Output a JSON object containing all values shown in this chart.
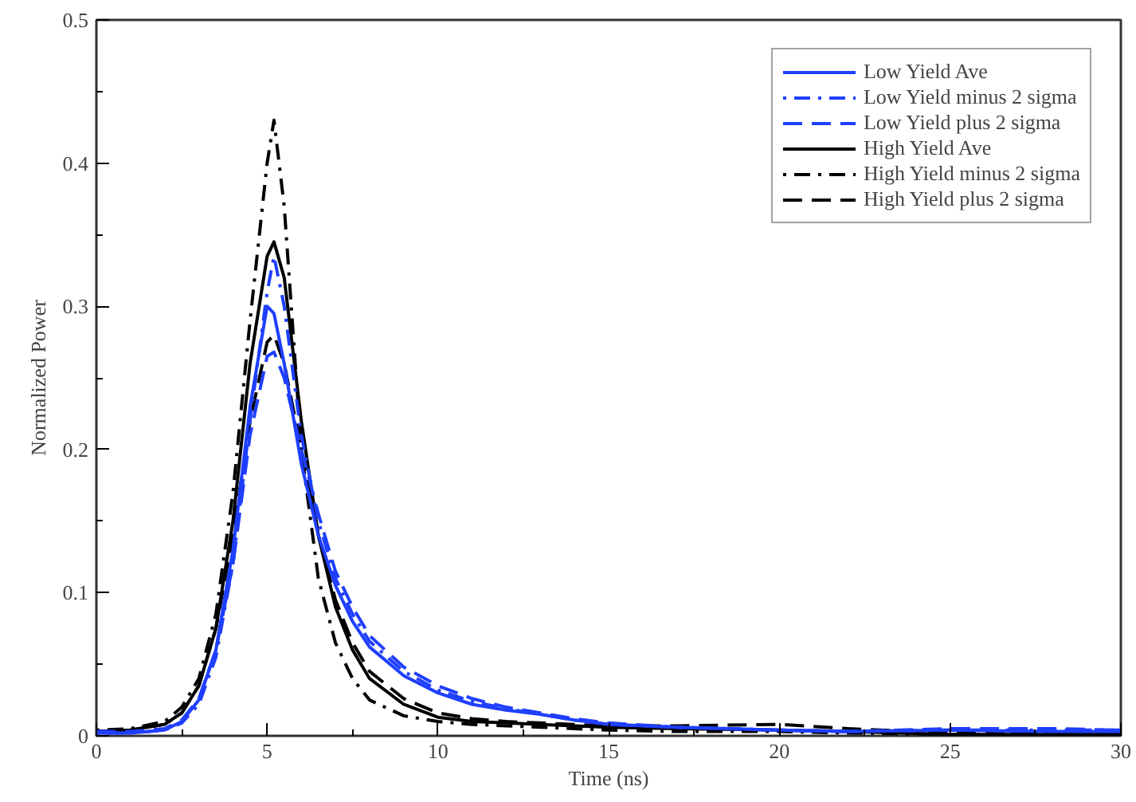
{
  "chart_data": {
    "type": "line",
    "xlabel": "Time (ns)",
    "ylabel": "Normalized Power",
    "x": [
      0,
      1,
      2,
      2.5,
      3,
      3.5,
      4,
      4.5,
      5,
      5.2,
      5.5,
      6,
      6.5,
      7,
      7.5,
      8,
      9,
      10,
      11,
      12,
      13,
      14,
      15,
      17,
      20,
      22,
      25,
      28,
      30
    ],
    "xlim": [
      0,
      30
    ],
    "xticks": [
      0,
      5,
      10,
      15,
      20,
      25,
      30
    ],
    "ylim": [
      0,
      0.5
    ],
    "yticks": [
      0,
      0.1,
      0.2,
      0.3,
      0.4,
      0.5
    ],
    "grid": false,
    "legend": "top right",
    "series": [
      {
        "name": "Low Yield Ave",
        "color": "#1f3fff",
        "line_style": "solid",
        "values": [
          0.002,
          0.002,
          0.004,
          0.01,
          0.025,
          0.06,
          0.13,
          0.23,
          0.3,
          0.295,
          0.26,
          0.19,
          0.14,
          0.105,
          0.08,
          0.062,
          0.042,
          0.03,
          0.022,
          0.018,
          0.015,
          0.011,
          0.008,
          0.006,
          0.004,
          0.003,
          0.004,
          0.003,
          0.003
        ]
      },
      {
        "name": "Low Yield minus 2 sigma",
        "color": "#1f3fff",
        "line_style": "dashdot",
        "values": [
          0.002,
          0.002,
          0.004,
          0.009,
          0.022,
          0.055,
          0.12,
          0.22,
          0.31,
          0.335,
          0.3,
          0.21,
          0.15,
          0.11,
          0.085,
          0.066,
          0.045,
          0.032,
          0.024,
          0.019,
          0.015,
          0.011,
          0.008,
          0.006,
          0.004,
          0.003,
          0.004,
          0.004,
          0.004
        ]
      },
      {
        "name": "Low Yield plus 2 sigma",
        "color": "#1f3fff",
        "line_style": "dashed",
        "values": [
          0.003,
          0.003,
          0.005,
          0.011,
          0.026,
          0.06,
          0.12,
          0.21,
          0.265,
          0.268,
          0.25,
          0.2,
          0.155,
          0.115,
          0.09,
          0.07,
          0.048,
          0.035,
          0.026,
          0.02,
          0.016,
          0.012,
          0.009,
          0.006,
          0.004,
          0.003,
          0.005,
          0.005,
          0.004
        ]
      },
      {
        "name": "High Yield Ave",
        "color": "#000000",
        "line_style": "solid",
        "values": [
          0.003,
          0.004,
          0.008,
          0.016,
          0.035,
          0.075,
          0.15,
          0.26,
          0.335,
          0.345,
          0.32,
          0.22,
          0.14,
          0.09,
          0.06,
          0.04,
          0.022,
          0.013,
          0.01,
          0.009,
          0.008,
          0.007,
          0.006,
          0.005,
          0.004,
          0.003,
          0.001,
          0.001,
          0.001
        ]
      },
      {
        "name": "High Yield minus 2 sigma",
        "color": "#000000",
        "line_style": "dashdot",
        "values": [
          0.004,
          0.005,
          0.01,
          0.02,
          0.04,
          0.085,
          0.17,
          0.29,
          0.4,
          0.43,
          0.37,
          0.2,
          0.11,
          0.065,
          0.04,
          0.025,
          0.014,
          0.01,
          0.008,
          0.007,
          0.006,
          0.005,
          0.004,
          0.003,
          0.003,
          0.002,
          0.001,
          0.001,
          0.001
        ]
      },
      {
        "name": "High Yield plus 2 sigma",
        "color": "#000000",
        "line_style": "dashed",
        "values": [
          0.003,
          0.004,
          0.008,
          0.016,
          0.035,
          0.075,
          0.14,
          0.22,
          0.275,
          0.28,
          0.26,
          0.2,
          0.14,
          0.095,
          0.065,
          0.045,
          0.026,
          0.016,
          0.012,
          0.01,
          0.009,
          0.008,
          0.007,
          0.007,
          0.008,
          0.005,
          0.002,
          0.001,
          0.001
        ]
      }
    ]
  }
}
